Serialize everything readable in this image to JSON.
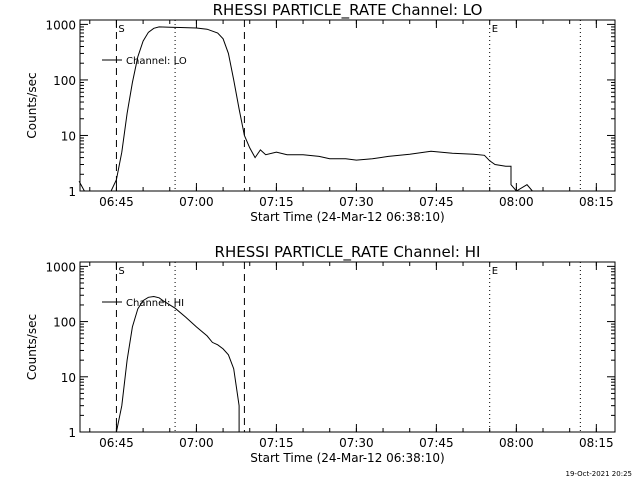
{
  "footer": {
    "date_stamp": "19-Oct-2021 20:25"
  },
  "chart_data": [
    {
      "type": "line",
      "title": "RHESSI PARTICLE_RATE Channel: LO",
      "xlabel": "Start Time (24-Mar-12 06:38:10)",
      "ylabel": "Counts/sec",
      "yscale": "log",
      "ylim": [
        1,
        1200
      ],
      "xlim": [
        "06:38:10",
        "08:18:30"
      ],
      "x_ticks": [
        "06:45",
        "07:00",
        "07:15",
        "07:30",
        "07:45",
        "08:00",
        "08:15"
      ],
      "y_ticks": [
        "1",
        "10",
        "100",
        "1000"
      ],
      "legend": {
        "position": "top-left",
        "entry": "Channel: LO"
      },
      "markers": [
        {
          "label": "S",
          "time": "06:45",
          "style": "dashed"
        },
        {
          "label": "",
          "time": "06:56",
          "style": "dotted"
        },
        {
          "label": "",
          "time": "07:09",
          "style": "dashed"
        },
        {
          "label": "E",
          "time": "07:55",
          "style": "dotted"
        },
        {
          "label": "",
          "time": "08:12",
          "style": "dotted"
        }
      ],
      "series": [
        {
          "name": "Channel: LO",
          "points": [
            [
              "06:38",
              1.5
            ],
            [
              "06:39",
              1.0
            ],
            [
              "06:44",
              1.0
            ],
            [
              "06:45",
              1.6
            ],
            [
              "06:46",
              5
            ],
            [
              "06:47",
              25
            ],
            [
              "06:48",
              90
            ],
            [
              "06:49",
              260
            ],
            [
              "06:50",
              500
            ],
            [
              "06:51",
              720
            ],
            [
              "06:52",
              850
            ],
            [
              "06:53",
              900
            ],
            [
              "06:55",
              890
            ],
            [
              "06:57",
              880
            ],
            [
              "07:00",
              860
            ],
            [
              "07:02",
              820
            ],
            [
              "07:04",
              700
            ],
            [
              "07:05",
              550
            ],
            [
              "07:06",
              300
            ],
            [
              "07:07",
              100
            ],
            [
              "07:08",
              30
            ],
            [
              "07:09",
              10
            ],
            [
              "07:10",
              6
            ],
            [
              "07:11",
              4
            ],
            [
              "07:12",
              5.5
            ],
            [
              "07:13",
              4.5
            ],
            [
              "07:15",
              5
            ],
            [
              "07:17",
              4.5
            ],
            [
              "07:20",
              4.5
            ],
            [
              "07:23",
              4.2
            ],
            [
              "07:25",
              3.8
            ],
            [
              "07:28",
              3.8
            ],
            [
              "07:30",
              3.6
            ],
            [
              "07:33",
              3.8
            ],
            [
              "07:36",
              4.2
            ],
            [
              "07:40",
              4.6
            ],
            [
              "07:44",
              5.2
            ],
            [
              "07:48",
              4.8
            ],
            [
              "07:52",
              4.6
            ],
            [
              "07:54",
              4.4
            ],
            [
              "07:55",
              3.5
            ],
            [
              "07:56",
              3.0
            ],
            [
              "07:58",
              2.8
            ],
            [
              "07:59",
              2.8
            ],
            [
              "07:59",
              1.3
            ],
            [
              "08:00",
              1.0
            ],
            [
              "08:02",
              1.3
            ],
            [
              "08:03",
              1.0
            ]
          ]
        }
      ]
    },
    {
      "type": "line",
      "title": "RHESSI PARTICLE_RATE Channel: HI",
      "xlabel": "Start Time (24-Mar-12 06:38:10)",
      "ylabel": "Counts/sec",
      "yscale": "log",
      "ylim": [
        1,
        1200
      ],
      "xlim": [
        "06:38:10",
        "08:18:30"
      ],
      "x_ticks": [
        "06:45",
        "07:00",
        "07:15",
        "07:30",
        "07:45",
        "08:00",
        "08:15"
      ],
      "y_ticks": [
        "1",
        "10",
        "100",
        "1000"
      ],
      "legend": {
        "position": "top-left",
        "entry": "Channel: HI"
      },
      "markers": [
        {
          "label": "S",
          "time": "06:45",
          "style": "dashed"
        },
        {
          "label": "",
          "time": "06:56",
          "style": "dotted"
        },
        {
          "label": "",
          "time": "07:09",
          "style": "dashed"
        },
        {
          "label": "E",
          "time": "07:55",
          "style": "dotted"
        },
        {
          "label": "",
          "time": "08:12",
          "style": "dotted"
        }
      ],
      "series": [
        {
          "name": "Channel: HI",
          "points": [
            [
              "06:45",
              1.0
            ],
            [
              "06:46",
              3
            ],
            [
              "06:47",
              20
            ],
            [
              "06:48",
              80
            ],
            [
              "06:49",
              170
            ],
            [
              "06:50",
              240
            ],
            [
              "06:51",
              275
            ],
            [
              "06:52",
              285
            ],
            [
              "06:53",
              270
            ],
            [
              "06:54",
              230
            ],
            [
              "06:56",
              175
            ],
            [
              "06:58",
              120
            ],
            [
              "07:00",
              80
            ],
            [
              "07:02",
              55
            ],
            [
              "07:03",
              42
            ],
            [
              "07:04",
              38
            ],
            [
              "07:05",
              32
            ],
            [
              "07:06",
              25
            ],
            [
              "07:07",
              14
            ],
            [
              "07:08",
              3
            ],
            [
              "07:08",
              1.0
            ]
          ]
        }
      ]
    }
  ]
}
